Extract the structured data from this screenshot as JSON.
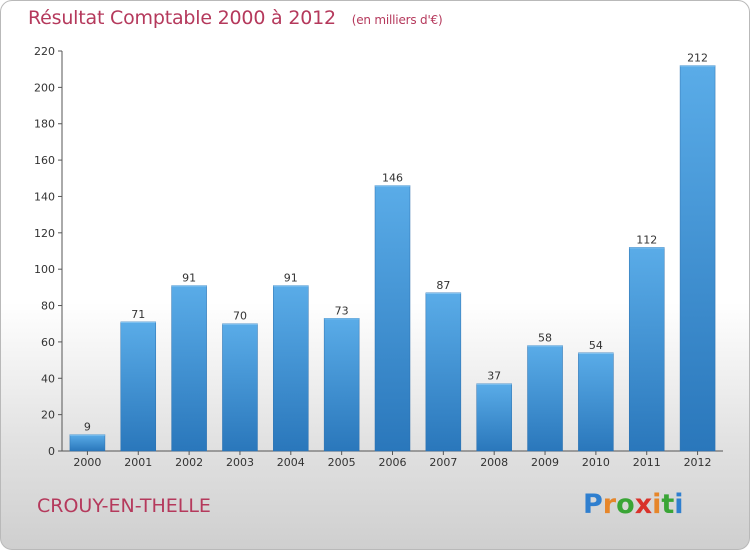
{
  "chart_data": {
    "type": "bar",
    "title": "Résultat Comptable 2000 à 2012",
    "subtitle": "(en milliers d'€)",
    "xlabel": "",
    "ylabel": "",
    "categories": [
      "2000",
      "2001",
      "2002",
      "2003",
      "2004",
      "2005",
      "2006",
      "2007",
      "2008",
      "2009",
      "2010",
      "2011",
      "2012"
    ],
    "values": [
      9,
      71,
      91,
      70,
      91,
      73,
      146,
      87,
      37,
      58,
      54,
      112,
      212
    ],
    "ylim": [
      0,
      220
    ],
    "yticks": [
      0,
      20,
      40,
      60,
      80,
      100,
      120,
      140,
      160,
      180,
      200,
      220
    ],
    "grid": false,
    "bar_color": "#3d8fd3"
  },
  "commune": "CROUY-EN-THELLE",
  "logo": {
    "letters": [
      "P",
      "r",
      "o",
      "x",
      "i",
      "t",
      "i"
    ],
    "colors": [
      "#2f7fcf",
      "#e6862a",
      "#3aa536",
      "#d9322b",
      "#e6862a",
      "#3aa536",
      "#2f7fcf"
    ]
  }
}
